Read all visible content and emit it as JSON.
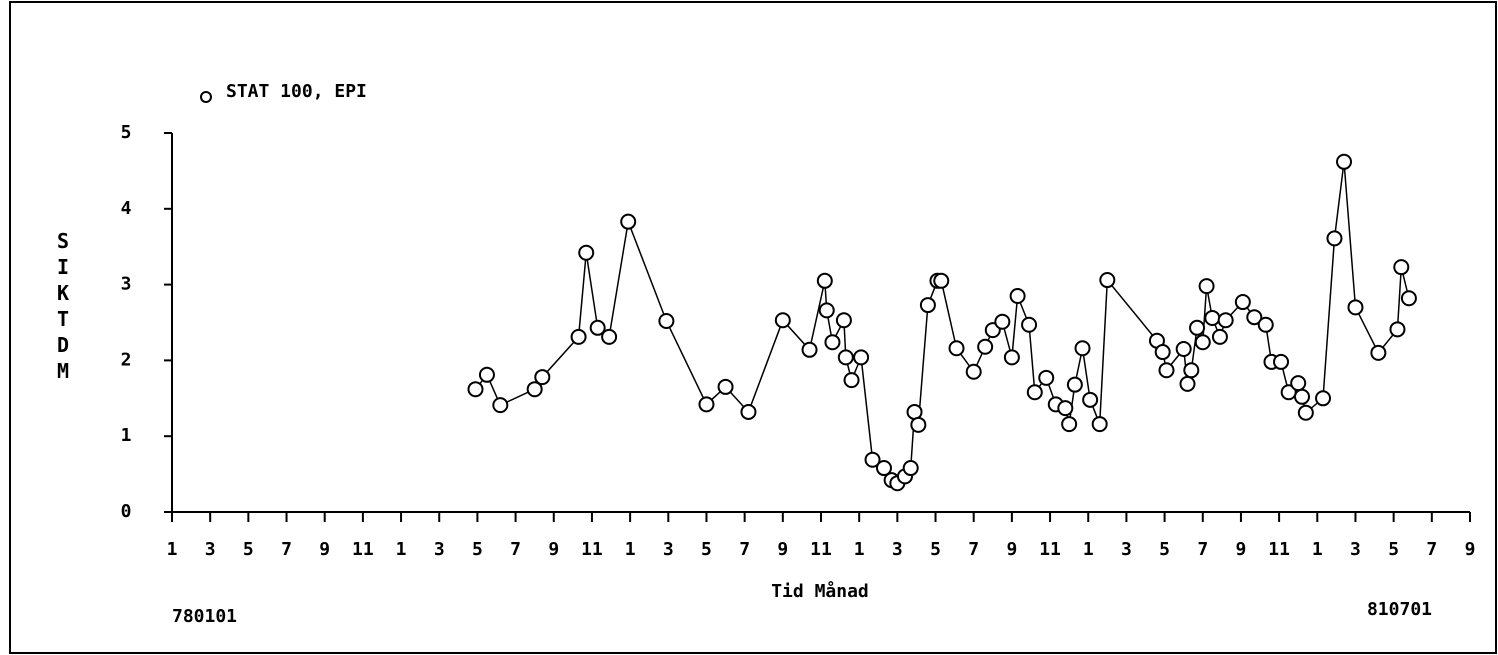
{
  "chart_data": {
    "type": "line",
    "legend": "STAT 100, EPI",
    "ylabel": "SIKTD M",
    "xlabel": "Tid Månad",
    "annotations": [
      "780101",
      "810701"
    ],
    "color": "#000000",
    "marker": "circle",
    "x": [
      15.9,
      16.5,
      17.2,
      19.0,
      19.4,
      21.3,
      21.7,
      22.3,
      22.9,
      23.9,
      25.9,
      28.0,
      29.0,
      30.2,
      32.0,
      33.4,
      34.2,
      34.3,
      34.6,
      35.2,
      35.3,
      35.6,
      36.1,
      36.7,
      37.3,
      37.7,
      38.0,
      38.4,
      38.7,
      38.9,
      39.1,
      39.6,
      40.1,
      40.3,
      41.1,
      42.0,
      42.6,
      43.0,
      43.5,
      44.0,
      44.3,
      44.9,
      45.2,
      45.8,
      46.3,
      46.8,
      47.0,
      47.3,
      47.7,
      48.1,
      48.6,
      49.0,
      51.6,
      51.9,
      52.1,
      53.0,
      53.2,
      53.4,
      53.7,
      54.0,
      54.2,
      54.5,
      54.9,
      55.2,
      56.1,
      56.7,
      57.3,
      57.6,
      58.1,
      58.5,
      59.0,
      59.2,
      59.4,
      60.3,
      60.9,
      61.4,
      62.0,
      63.2,
      64.2,
      64.4,
      64.8
    ],
    "values": [
      1.62,
      1.81,
      1.41,
      1.62,
      1.78,
      2.31,
      3.42,
      2.43,
      2.31,
      3.83,
      2.52,
      1.42,
      1.65,
      1.32,
      2.53,
      2.14,
      3.05,
      2.66,
      2.24,
      2.53,
      2.04,
      1.74,
      2.04,
      0.69,
      0.58,
      0.42,
      0.38,
      0.47,
      0.58,
      1.32,
      1.15,
      2.73,
      3.05,
      3.05,
      2.16,
      1.85,
      2.18,
      2.4,
      2.51,
      2.04,
      2.85,
      2.47,
      1.58,
      1.77,
      1.42,
      1.37,
      1.16,
      1.68,
      2.16,
      1.48,
      1.16,
      3.06,
      2.26,
      2.11,
      1.87,
      2.15,
      1.69,
      1.87,
      2.43,
      2.24,
      2.98,
      2.56,
      2.31,
      2.53,
      2.77,
      2.57,
      2.47,
      1.98,
      1.98,
      1.58,
      1.7,
      1.52,
      1.31,
      1.5,
      3.61,
      4.62,
      2.7,
      2.1,
      2.41,
      3.23,
      2.82
    ],
    "xlim": [
      0,
      68
    ],
    "xticks": [
      {
        "value": 0,
        "label": "1"
      },
      {
        "value": 2,
        "label": "3"
      },
      {
        "value": 4,
        "label": "5"
      },
      {
        "value": 6,
        "label": "7"
      },
      {
        "value": 8,
        "label": "9"
      },
      {
        "value": 10,
        "label": "11"
      },
      {
        "value": 12,
        "label": "1"
      },
      {
        "value": 14,
        "label": "3"
      },
      {
        "value": 16,
        "label": "5"
      },
      {
        "value": 18,
        "label": "7"
      },
      {
        "value": 20,
        "label": "9"
      },
      {
        "value": 22,
        "label": "11"
      },
      {
        "value": 24,
        "label": "1"
      },
      {
        "value": 26,
        "label": "3"
      },
      {
        "value": 28,
        "label": "5"
      },
      {
        "value": 30,
        "label": "7"
      },
      {
        "value": 32,
        "label": "9"
      },
      {
        "value": 34,
        "label": "11"
      },
      {
        "value": 36,
        "label": "1"
      },
      {
        "value": 38,
        "label": "3"
      },
      {
        "value": 40,
        "label": "5"
      },
      {
        "value": 42,
        "label": "7"
      },
      {
        "value": 44,
        "label": "9"
      },
      {
        "value": 46,
        "label": "11"
      },
      {
        "value": 48,
        "label": "1"
      },
      {
        "value": 50,
        "label": "3"
      },
      {
        "value": 52,
        "label": "5"
      },
      {
        "value": 54,
        "label": "7"
      },
      {
        "value": 56,
        "label": "9"
      },
      {
        "value": 58,
        "label": "11"
      },
      {
        "value": 60,
        "label": "1"
      },
      {
        "value": 62,
        "label": "3"
      },
      {
        "value": 64,
        "label": "5"
      },
      {
        "value": 66,
        "label": "7"
      },
      {
        "value": 68,
        "label": "9"
      }
    ],
    "ylim": [
      0,
      5
    ],
    "yticks": [
      0,
      1,
      2,
      3,
      4,
      5
    ]
  }
}
